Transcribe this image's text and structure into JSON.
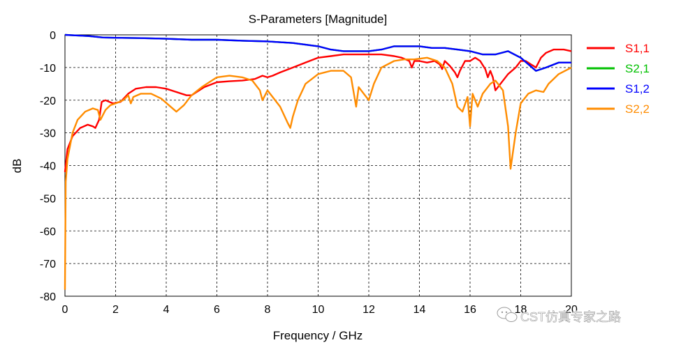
{
  "chart_data": {
    "type": "line",
    "title": "S-Parameters [Magnitude]",
    "xlabel": "Frequency / GHz",
    "ylabel": "dB",
    "xlim": [
      0,
      20
    ],
    "ylim": [
      -80,
      0
    ],
    "x_ticks": [
      0,
      2,
      4,
      6,
      8,
      10,
      12,
      14,
      16,
      18,
      20
    ],
    "x_tick_labels": [
      "0",
      "2",
      "4",
      "6",
      "8",
      "10",
      "12",
      "14",
      "16",
      "18",
      "20"
    ],
    "y_ticks": [
      0,
      -10,
      -20,
      -30,
      -40,
      -50,
      -60,
      -70,
      -80
    ],
    "y_tick_labels": [
      "0",
      "-10",
      "-20",
      "-30",
      "-40",
      "-50",
      "-60",
      "-70",
      "-80"
    ],
    "grid": true,
    "legend_position": "right",
    "series": [
      {
        "name": "S1,1",
        "color": "#ff0000",
        "points": [
          [
            0,
            -42
          ],
          [
            0.1,
            -35
          ],
          [
            0.3,
            -31
          ],
          [
            0.6,
            -28.5
          ],
          [
            0.9,
            -27.5
          ],
          [
            1.1,
            -28
          ],
          [
            1.2,
            -28.5
          ],
          [
            1.35,
            -26
          ],
          [
            1.45,
            -20.5
          ],
          [
            1.6,
            -20
          ],
          [
            1.9,
            -21
          ],
          [
            2.2,
            -20.5
          ],
          [
            2.5,
            -18
          ],
          [
            2.8,
            -16.5
          ],
          [
            3.2,
            -16
          ],
          [
            3.6,
            -16
          ],
          [
            4.0,
            -16.5
          ],
          [
            4.4,
            -17.5
          ],
          [
            4.8,
            -18.5
          ],
          [
            5.0,
            -18.5
          ],
          [
            5.2,
            -17.5
          ],
          [
            5.5,
            -16
          ],
          [
            6.0,
            -14.5
          ],
          [
            6.5,
            -14.2
          ],
          [
            7.0,
            -14
          ],
          [
            7.5,
            -13.5
          ],
          [
            7.8,
            -12.5
          ],
          [
            8.0,
            -13
          ],
          [
            8.2,
            -12.5
          ],
          [
            8.5,
            -11.5
          ],
          [
            9.0,
            -10
          ],
          [
            9.5,
            -8.5
          ],
          [
            10.0,
            -7
          ],
          [
            10.5,
            -6.5
          ],
          [
            11.0,
            -6
          ],
          [
            11.5,
            -6
          ],
          [
            12.0,
            -6
          ],
          [
            12.5,
            -6
          ],
          [
            13.0,
            -6.5
          ],
          [
            13.3,
            -7
          ],
          [
            13.6,
            -8
          ],
          [
            13.7,
            -10
          ],
          [
            13.8,
            -8
          ],
          [
            14.0,
            -8
          ],
          [
            14.3,
            -8.5
          ],
          [
            14.6,
            -8
          ],
          [
            14.8,
            -9
          ],
          [
            14.9,
            -10.5
          ],
          [
            15.0,
            -8
          ],
          [
            15.2,
            -9.5
          ],
          [
            15.4,
            -11.5
          ],
          [
            15.5,
            -13
          ],
          [
            15.6,
            -11
          ],
          [
            15.8,
            -8
          ],
          [
            16.0,
            -8
          ],
          [
            16.2,
            -7
          ],
          [
            16.4,
            -8
          ],
          [
            16.6,
            -10.5
          ],
          [
            16.7,
            -13
          ],
          [
            16.8,
            -11
          ],
          [
            16.9,
            -13
          ],
          [
            17.0,
            -17
          ],
          [
            17.2,
            -15
          ],
          [
            17.5,
            -12
          ],
          [
            17.8,
            -10
          ],
          [
            18.0,
            -8
          ],
          [
            18.2,
            -8
          ],
          [
            18.4,
            -9
          ],
          [
            18.6,
            -10
          ],
          [
            18.8,
            -7
          ],
          [
            19.0,
            -5.5
          ],
          [
            19.3,
            -4.5
          ],
          [
            19.7,
            -4.5
          ],
          [
            20.0,
            -5
          ]
        ]
      },
      {
        "name": "S2,1",
        "color": "#00c000",
        "points": [
          [
            0,
            0
          ],
          [
            0.5,
            -0.2
          ],
          [
            1,
            -0.4
          ],
          [
            1.5,
            -0.8
          ],
          [
            2,
            -0.9
          ],
          [
            3,
            -1
          ],
          [
            4,
            -1.2
          ],
          [
            5,
            -1.5
          ],
          [
            6,
            -1.5
          ],
          [
            7,
            -1.8
          ],
          [
            8,
            -2
          ],
          [
            9,
            -2.5
          ],
          [
            9.5,
            -3
          ],
          [
            10,
            -3.5
          ],
          [
            10.5,
            -4.5
          ],
          [
            11,
            -5
          ],
          [
            11.5,
            -5
          ],
          [
            12,
            -5
          ],
          [
            12.5,
            -4.5
          ],
          [
            13,
            -3.5
          ],
          [
            13.5,
            -3.5
          ],
          [
            14,
            -3.5
          ],
          [
            14.5,
            -4
          ],
          [
            15,
            -4
          ],
          [
            15.5,
            -4.5
          ],
          [
            16,
            -5
          ],
          [
            16.5,
            -6
          ],
          [
            17,
            -6
          ],
          [
            17.5,
            -5
          ],
          [
            18,
            -7
          ],
          [
            18.3,
            -9
          ],
          [
            18.6,
            -11
          ],
          [
            19,
            -10
          ],
          [
            19.5,
            -8.5
          ],
          [
            20,
            -8.5
          ]
        ]
      },
      {
        "name": "S1,2",
        "color": "#0000ff",
        "points": [
          [
            0,
            0
          ],
          [
            0.5,
            -0.2
          ],
          [
            1,
            -0.4
          ],
          [
            1.5,
            -0.8
          ],
          [
            2,
            -0.9
          ],
          [
            3,
            -1
          ],
          [
            4,
            -1.2
          ],
          [
            5,
            -1.5
          ],
          [
            6,
            -1.5
          ],
          [
            7,
            -1.8
          ],
          [
            8,
            -2
          ],
          [
            9,
            -2.5
          ],
          [
            9.5,
            -3
          ],
          [
            10,
            -3.5
          ],
          [
            10.5,
            -4.5
          ],
          [
            11,
            -5
          ],
          [
            11.5,
            -5
          ],
          [
            12,
            -5
          ],
          [
            12.5,
            -4.5
          ],
          [
            13,
            -3.5
          ],
          [
            13.5,
            -3.5
          ],
          [
            14,
            -3.5
          ],
          [
            14.5,
            -4
          ],
          [
            15,
            -4
          ],
          [
            15.5,
            -4.5
          ],
          [
            16,
            -5
          ],
          [
            16.5,
            -6
          ],
          [
            17,
            -6
          ],
          [
            17.5,
            -5
          ],
          [
            18,
            -7
          ],
          [
            18.3,
            -9
          ],
          [
            18.6,
            -11
          ],
          [
            19,
            -10
          ],
          [
            19.5,
            -8.5
          ],
          [
            20,
            -8.5
          ]
        ]
      },
      {
        "name": "S2,2",
        "color": "#ff8c00",
        "points": [
          [
            0,
            -78
          ],
          [
            0.03,
            -45
          ],
          [
            0.1,
            -38
          ],
          [
            0.3,
            -30
          ],
          [
            0.5,
            -26
          ],
          [
            0.8,
            -23.5
          ],
          [
            1.1,
            -22.5
          ],
          [
            1.3,
            -23
          ],
          [
            1.4,
            -26
          ],
          [
            1.6,
            -23
          ],
          [
            1.8,
            -21.5
          ],
          [
            2.0,
            -21
          ],
          [
            2.3,
            -20
          ],
          [
            2.5,
            -18.5
          ],
          [
            2.6,
            -21
          ],
          [
            2.7,
            -19
          ],
          [
            3.0,
            -18
          ],
          [
            3.4,
            -18
          ],
          [
            3.8,
            -19.5
          ],
          [
            4.1,
            -21.5
          ],
          [
            4.4,
            -23.5
          ],
          [
            4.7,
            -21.5
          ],
          [
            5.0,
            -18.5
          ],
          [
            5.4,
            -16
          ],
          [
            6.0,
            -13
          ],
          [
            6.5,
            -12.5
          ],
          [
            7.0,
            -13
          ],
          [
            7.4,
            -14
          ],
          [
            7.7,
            -17
          ],
          [
            7.8,
            -20
          ],
          [
            8.0,
            -17
          ],
          [
            8.2,
            -19
          ],
          [
            8.5,
            -22
          ],
          [
            8.8,
            -27
          ],
          [
            8.9,
            -28.5
          ],
          [
            9.0,
            -25
          ],
          [
            9.2,
            -20
          ],
          [
            9.5,
            -15
          ],
          [
            10.0,
            -12
          ],
          [
            10.5,
            -11
          ],
          [
            11.0,
            -11
          ],
          [
            11.3,
            -13
          ],
          [
            11.5,
            -22
          ],
          [
            11.6,
            -16
          ],
          [
            11.9,
            -19
          ],
          [
            12.0,
            -20
          ],
          [
            12.2,
            -15
          ],
          [
            12.5,
            -10
          ],
          [
            13.0,
            -8
          ],
          [
            13.4,
            -7.5
          ],
          [
            13.8,
            -7.5
          ],
          [
            14.3,
            -7
          ],
          [
            14.7,
            -8
          ],
          [
            15.0,
            -10
          ],
          [
            15.3,
            -15
          ],
          [
            15.5,
            -22
          ],
          [
            15.7,
            -23.5
          ],
          [
            15.9,
            -19
          ],
          [
            16.0,
            -28
          ],
          [
            16.1,
            -18
          ],
          [
            16.3,
            -22
          ],
          [
            16.5,
            -18
          ],
          [
            16.8,
            -15
          ],
          [
            17.0,
            -14
          ],
          [
            17.3,
            -17
          ],
          [
            17.5,
            -28
          ],
          [
            17.6,
            -41
          ],
          [
            17.8,
            -30
          ],
          [
            18.0,
            -21
          ],
          [
            18.3,
            -18
          ],
          [
            18.6,
            -17
          ],
          [
            18.9,
            -17.5
          ],
          [
            19.1,
            -15
          ],
          [
            19.5,
            -12
          ],
          [
            20.0,
            -10
          ]
        ]
      }
    ]
  },
  "watermark": {
    "text": "CST仿真专家之路",
    "icon": "wechat-icon"
  }
}
